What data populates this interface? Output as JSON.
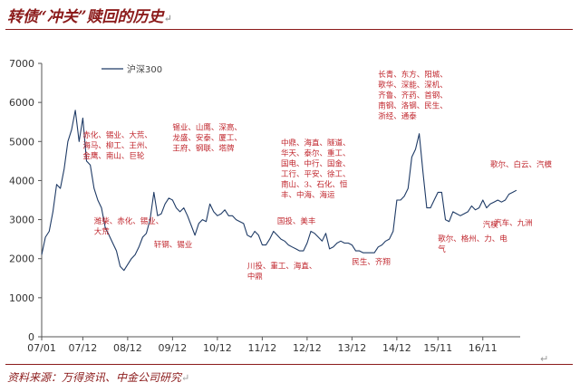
{
  "title": "转债“冲关”赎回的历史",
  "source": "资料来源：万得资讯、中金公司研究",
  "para_mark": "↵",
  "colors": {
    "accent": "#8b1a1a",
    "line": "#1f3b66",
    "annotation": "#c0262d",
    "axis": "#555555"
  },
  "chart_data": {
    "type": "line",
    "title": "",
    "xlabel": "",
    "ylabel": "",
    "ylim": [
      0,
      7000
    ],
    "yticks": [
      0,
      1000,
      2000,
      3000,
      4000,
      5000,
      6000,
      7000
    ],
    "xticks": [
      "07/01",
      "07/12",
      "08/12",
      "09/12",
      "10/12",
      "11/12",
      "12/12",
      "13/12",
      "14/12",
      "15/11",
      "16/11"
    ],
    "grid": false,
    "legend": "top-left",
    "series": [
      {
        "name": "沪深300",
        "points": [
          [
            "07/01",
            2100
          ],
          [
            "07/02",
            2550
          ],
          [
            "07/03",
            2700
          ],
          [
            "07/04",
            3200
          ],
          [
            "07/05",
            3900
          ],
          [
            "07/06",
            3800
          ],
          [
            "07/07",
            4300
          ],
          [
            "07/08",
            5000
          ],
          [
            "07/09",
            5300
          ],
          [
            "07/10",
            5800
          ],
          [
            "07/11",
            5000
          ],
          [
            "07/12",
            5600
          ],
          [
            "08/01",
            4500
          ],
          [
            "08/02",
            4400
          ],
          [
            "08/03",
            3800
          ],
          [
            "08/04",
            3500
          ],
          [
            "08/05",
            3300
          ],
          [
            "08/06",
            2800
          ],
          [
            "08/07",
            2600
          ],
          [
            "08/08",
            2400
          ],
          [
            "08/09",
            2200
          ],
          [
            "08/10",
            1800
          ],
          [
            "08/11",
            1700
          ],
          [
            "08/12",
            1850
          ],
          [
            "09/01",
            2000
          ],
          [
            "09/02",
            2100
          ],
          [
            "09/03",
            2300
          ],
          [
            "09/04",
            2550
          ],
          [
            "09/05",
            2650
          ],
          [
            "09/06",
            3000
          ],
          [
            "09/07",
            3700
          ],
          [
            "09/08",
            3100
          ],
          [
            "09/09",
            3150
          ],
          [
            "09/10",
            3400
          ],
          [
            "09/11",
            3550
          ],
          [
            "09/12",
            3500
          ],
          [
            "10/01",
            3300
          ],
          [
            "10/02",
            3200
          ],
          [
            "10/03",
            3300
          ],
          [
            "10/04",
            3100
          ],
          [
            "10/05",
            2850
          ],
          [
            "10/06",
            2600
          ],
          [
            "10/07",
            2900
          ],
          [
            "10/08",
            3000
          ],
          [
            "10/09",
            2950
          ],
          [
            "10/10",
            3400
          ],
          [
            "10/11",
            3200
          ],
          [
            "10/12",
            3100
          ],
          [
            "11/01",
            3150
          ],
          [
            "11/02",
            3250
          ],
          [
            "11/03",
            3100
          ],
          [
            "11/04",
            3100
          ],
          [
            "11/05",
            3000
          ],
          [
            "11/06",
            2950
          ],
          [
            "11/07",
            2900
          ],
          [
            "11/08",
            2600
          ],
          [
            "11/09",
            2550
          ],
          [
            "11/10",
            2700
          ],
          [
            "11/11",
            2600
          ],
          [
            "11/12",
            2350
          ],
          [
            "12/01",
            2350
          ],
          [
            "12/02",
            2500
          ],
          [
            "12/03",
            2700
          ],
          [
            "12/04",
            2600
          ],
          [
            "12/05",
            2500
          ],
          [
            "12/06",
            2450
          ],
          [
            "12/07",
            2350
          ],
          [
            "12/08",
            2300
          ],
          [
            "12/09",
            2250
          ],
          [
            "12/10",
            2200
          ],
          [
            "12/11",
            2200
          ],
          [
            "12/12",
            2400
          ],
          [
            "13/01",
            2700
          ],
          [
            "13/02",
            2650
          ],
          [
            "13/03",
            2550
          ],
          [
            "13/04",
            2450
          ],
          [
            "13/05",
            2650
          ],
          [
            "13/06",
            2250
          ],
          [
            "13/07",
            2300
          ],
          [
            "13/08",
            2400
          ],
          [
            "13/09",
            2450
          ],
          [
            "13/10",
            2400
          ],
          [
            "13/11",
            2400
          ],
          [
            "13/12",
            2350
          ],
          [
            "14/01",
            2200
          ],
          [
            "14/02",
            2200
          ],
          [
            "14/03",
            2150
          ],
          [
            "14/04",
            2150
          ],
          [
            "14/05",
            2150
          ],
          [
            "14/06",
            2150
          ],
          [
            "14/07",
            2300
          ],
          [
            "14/08",
            2350
          ],
          [
            "14/09",
            2450
          ],
          [
            "14/10",
            2500
          ],
          [
            "14/11",
            2700
          ],
          [
            "14/12",
            3500
          ],
          [
            "15/01",
            3500
          ],
          [
            "15/02",
            3600
          ],
          [
            "15/03",
            3800
          ],
          [
            "15/04",
            4600
          ],
          [
            "15/05",
            4800
          ],
          [
            "15/06",
            5200
          ],
          [
            "15/07",
            4200
          ],
          [
            "15/08",
            3300
          ],
          [
            "15/09",
            3300
          ],
          [
            "15/10",
            3500
          ],
          [
            "15/11",
            3700
          ],
          [
            "15/12",
            3700
          ],
          [
            "16/01",
            3000
          ],
          [
            "16/02",
            2950
          ],
          [
            "16/03",
            3200
          ],
          [
            "16/04",
            3150
          ],
          [
            "16/05",
            3100
          ],
          [
            "16/06",
            3150
          ],
          [
            "16/07",
            3200
          ],
          [
            "16/08",
            3350
          ],
          [
            "16/09",
            3250
          ],
          [
            "16/10",
            3300
          ],
          [
            "16/11",
            3500
          ],
          [
            "16/12",
            3300
          ],
          [
            "17/01",
            3400
          ],
          [
            "17/02",
            3450
          ],
          [
            "17/03",
            3500
          ],
          [
            "17/04",
            3450
          ],
          [
            "17/05",
            3500
          ],
          [
            "17/06",
            3650
          ],
          [
            "17/07",
            3700
          ],
          [
            "17/08",
            3750
          ]
        ]
      }
    ],
    "annotations": [
      {
        "text": "长青、东方、阳城、歌华、深能、深机、齐鲁、齐药、首钢、南钢、洛钢、民生、浙经、通泰",
        "at": "14/07",
        "y": 6650
      },
      {
        "text": "赤化、锡业、大荒、海马、柳工、王州、金鹰、南山、巨轮",
        "at": "07/12",
        "y": 5100
      },
      {
        "text": "锡业、山鹰、深高、龙盛、安泰、厦工、王府、钢联、塔牌",
        "at": "09/12",
        "y": 5300
      },
      {
        "text": "中鼎、海直、隧道、华天、泰尔、重工、国电、中行、国金、工行、平安、徐工、南山、3、石化、恒丰、中海、海运",
        "at": "12/05",
        "y": 4900
      },
      {
        "text": "潍柴、赤化、锡业、大荒",
        "at": "08/03",
        "y": 2900
      },
      {
        "text": "轩钢、锡业",
        "at": "09/07",
        "y": 2300
      },
      {
        "text": "国投、美丰",
        "at": "12/04",
        "y": 2900
      },
      {
        "text": "川投、重工、海直、中鼎",
        "at": "11/08",
        "y": 1750
      },
      {
        "text": "民生、齐翔",
        "at": "13/12",
        "y": 1850
      },
      {
        "text": "歌尔、格州、力、电气",
        "at": "15/11",
        "y": 2450
      },
      {
        "text": "歌尔、白云、汽模",
        "at": "17/01",
        "y": 4350
      },
      {
        "text": "汽车、九洲",
        "at": "17/02",
        "y": 2850
      },
      {
        "text": "汽模",
        "at": "16/11",
        "y": 2800
      }
    ]
  }
}
